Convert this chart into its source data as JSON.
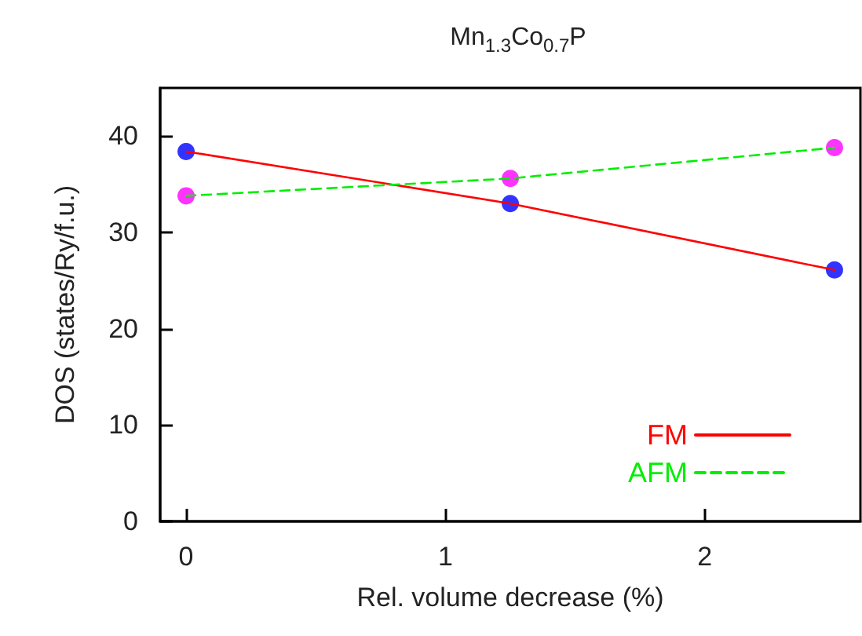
{
  "chart_data": {
    "type": "line",
    "title": "Mn$_{1.3}$Co$_{0.7}$P",
    "xlabel": "Rel. volume decrease (%)",
    "ylabel": "DOS (states/Ry/f.u.)",
    "x": [
      0,
      1.25,
      2.5
    ],
    "series": [
      {
        "name": "FM",
        "color": "#ff0000",
        "values": [
          38.4,
          33.0,
          26.1
        ],
        "line_style": "solid",
        "marker": "none"
      },
      {
        "name": "AFM",
        "color": "#00ee00",
        "values": [
          33.8,
          35.6,
          38.8
        ],
        "line_style": "dashed",
        "marker": "none"
      },
      {
        "type": "scatter",
        "color": "#0000ff",
        "values": [
          38.4,
          33.0,
          26.1
        ],
        "marker": "circle"
      },
      {
        "type": "scatter",
        "color": "#ff00ff",
        "values": [
          33.8,
          35.6,
          38.8
        ],
        "marker": "circle"
      }
    ],
    "xlim": [
      -0.1,
      2.6
    ],
    "xticks": [
      0,
      1,
      2
    ],
    "ylim": [
      0,
      45
    ],
    "yticks": [
      0,
      10,
      20,
      30,
      40
    ],
    "grid": false,
    "legend": "bottom right"
  }
}
